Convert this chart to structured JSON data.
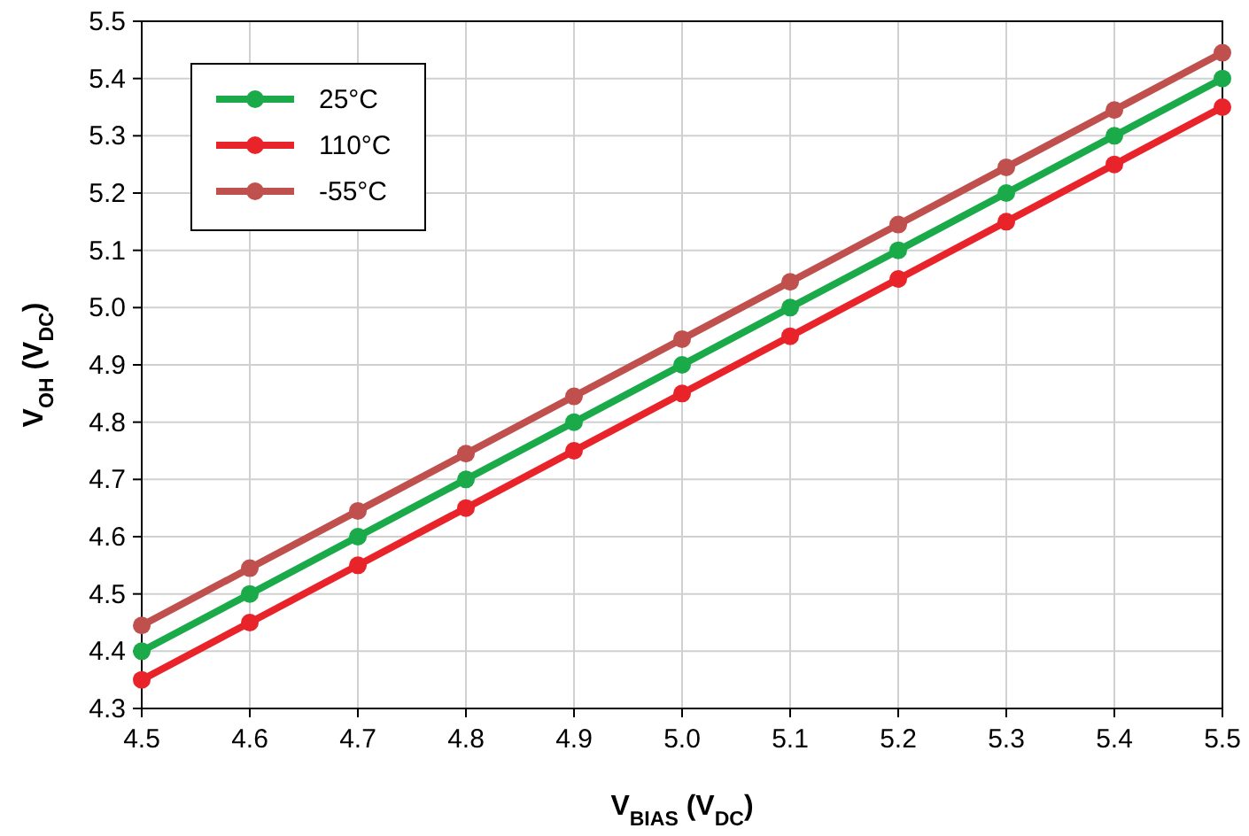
{
  "chart_data": {
    "type": "line",
    "xlabel": "V$_{BIAS}$ (V$_{DC}$)",
    "ylabel": "V$_{OH}$ (V$_{DC}$)",
    "x": [
      4.5,
      4.6,
      4.7,
      4.8,
      4.9,
      5.0,
      5.1,
      5.2,
      5.3,
      5.4,
      5.5
    ],
    "series": [
      {
        "name": "25°C",
        "color": "#1aaa4a",
        "values": [
          4.4,
          4.5,
          4.6,
          4.7,
          4.8,
          4.9,
          5.0,
          5.1,
          5.2,
          5.3,
          5.4
        ]
      },
      {
        "name": "110°C",
        "color": "#e8232a",
        "values": [
          4.35,
          4.45,
          4.55,
          4.65,
          4.75,
          4.85,
          4.95,
          5.05,
          5.15,
          5.25,
          5.35
        ]
      },
      {
        "name": "-55°C",
        "color": "#c0504d",
        "values": [
          4.445,
          4.545,
          4.645,
          4.745,
          4.845,
          4.945,
          5.045,
          5.145,
          5.245,
          5.345,
          5.445
        ]
      }
    ],
    "xlim": [
      4.5,
      5.5
    ],
    "xticks": [
      4.5,
      4.6,
      4.7,
      4.8,
      4.9,
      {
        "value": 5,
        "label": "5.0"
      },
      5.1,
      5.2,
      5.3,
      5.4,
      5.5
    ],
    "ylim": [
      4.3,
      5.5
    ],
    "yticks": [
      4.3,
      4.4,
      4.5,
      4.6,
      4.7,
      4.8,
      4.9,
      {
        "value": 5,
        "label": "5.0"
      },
      5.1,
      5.2,
      5.3,
      5.4,
      5.5
    ],
    "grid": true,
    "legend": "top left",
    "marker": "circle",
    "line_style": "solid"
  }
}
